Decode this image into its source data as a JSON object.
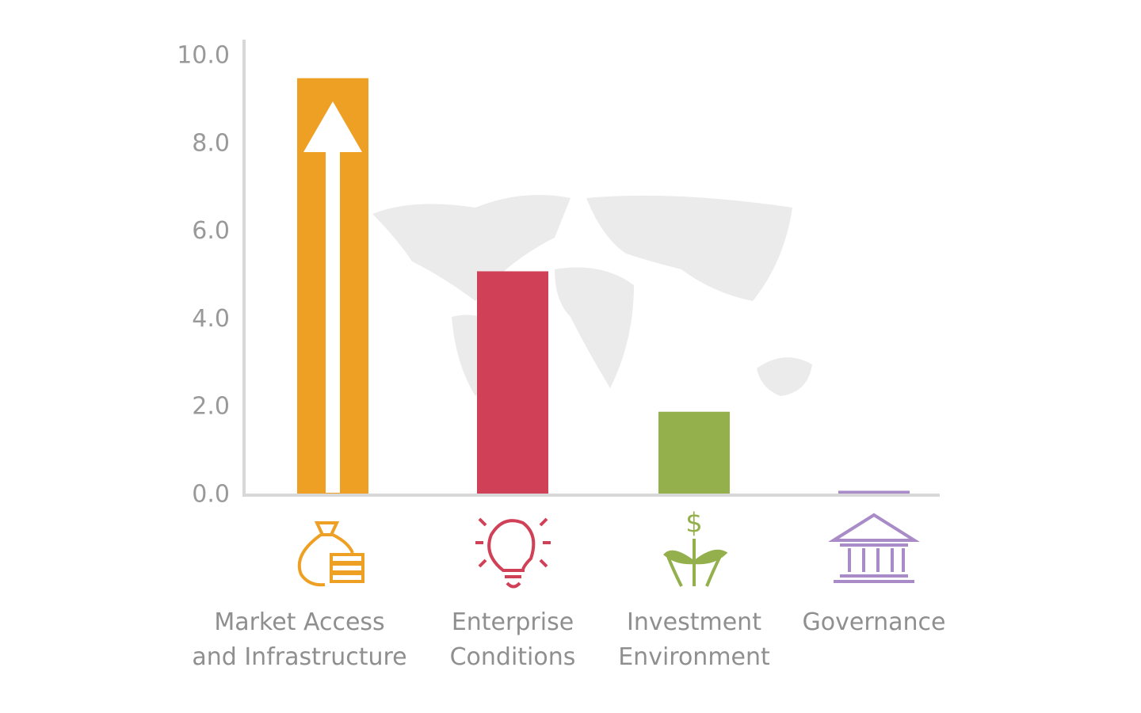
{
  "chart_data": {
    "type": "bar",
    "categories": [
      "Market Access and Infrastructure",
      "Enterprise Conditions",
      "Investment Environment",
      "Governance"
    ],
    "values": [
      9.5,
      5.1,
      1.9,
      0.1
    ],
    "colors": [
      "#eea024",
      "#d04057",
      "#94b04d",
      "#a88bc7"
    ],
    "ylim": [
      0,
      10
    ],
    "yticks": [
      {
        "value": 0,
        "label": "0.0"
      },
      {
        "value": 2,
        "label": "2.0"
      },
      {
        "value": 4,
        "label": "4.0"
      },
      {
        "value": 6,
        "label": "6.0"
      },
      {
        "value": 8,
        "label": "8.0"
      },
      {
        "value": 10,
        "label": "10.0"
      }
    ],
    "grid": false
  }
}
